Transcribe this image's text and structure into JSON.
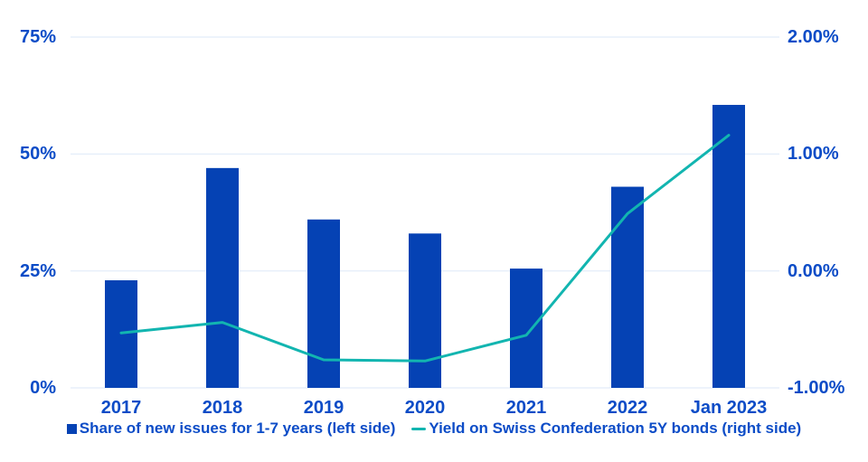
{
  "chart_data": {
    "type": "bar",
    "title": "",
    "categories": [
      "2017",
      "2018",
      "2019",
      "2020",
      "2021",
      "2022",
      "Jan 2023"
    ],
    "series": [
      {
        "name": "Share of new issues for 1-7 years (left side)",
        "type": "bar",
        "axis": "left",
        "unit": "%",
        "values": [
          23,
          47,
          36,
          33,
          25.5,
          43,
          60.5
        ]
      },
      {
        "name": "Yield on Swiss Confederation 5Y bonds (right side)",
        "type": "line",
        "axis": "right",
        "unit": "%",
        "values": [
          -0.53,
          -0.44,
          -0.76,
          -0.77,
          -0.55,
          0.49,
          1.16
        ]
      }
    ],
    "left_axis": {
      "min": 0,
      "max": 75,
      "tick_values": [
        0,
        25,
        50,
        75
      ],
      "ticks": [
        "0%",
        "25%",
        "50%",
        "75%"
      ]
    },
    "right_axis": {
      "min": -1,
      "max": 2,
      "tick_values": [
        -1,
        0,
        1,
        2
      ],
      "ticks": [
        "-1.00%",
        "0.00%",
        "1.00%",
        "2.00%"
      ]
    },
    "grid": true,
    "legend_position": "bottom"
  },
  "legend": {
    "items": [
      {
        "label": "Share of new issues for 1-7 years (left side)",
        "marker": "square"
      },
      {
        "label": "Yield on Swiss Confederation 5Y bonds (right side)",
        "marker": "line"
      }
    ]
  },
  "colors": {
    "bar": "#0542B4",
    "line": "#12B5B0",
    "label": "#0C4CC7",
    "grid": "#E7EFFA",
    "background": "#FFFFFF"
  }
}
